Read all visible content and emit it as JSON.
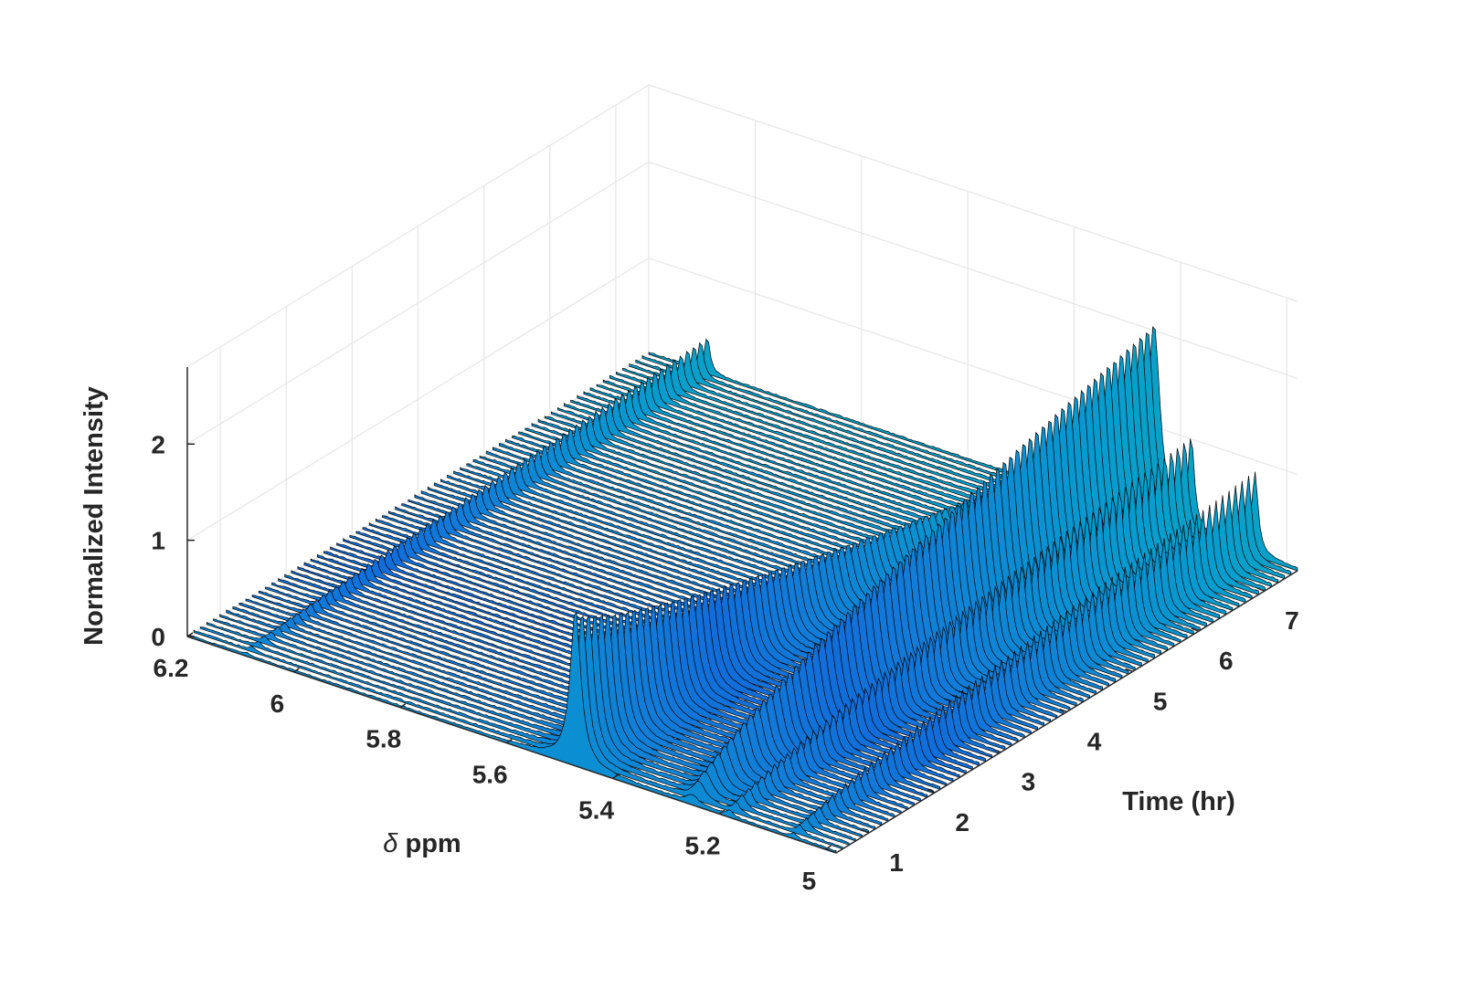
{
  "chart_data": {
    "type": "surface",
    "xlabel_symbol": "δ",
    "xlabel_rest": " ppm",
    "ylabel": "Time (hr)",
    "zlabel": "Normalized Intensity",
    "x_axis": {
      "reversed": true,
      "lim": [
        4.98,
        6.2
      ],
      "ticks": [
        6.2,
        6,
        5.8,
        5.6,
        5.4,
        5.2,
        5
      ],
      "tick_labels": [
        "6.2",
        "6",
        "5.8",
        "5.6",
        "5.4",
        "5.2",
        "5"
      ]
    },
    "y_axis": {
      "lim": [
        0.5,
        7.5
      ],
      "ticks": [
        1,
        2,
        3,
        4,
        5,
        6,
        7
      ],
      "tick_labels": [
        "1",
        "2",
        "3",
        "4",
        "5",
        "6",
        "7"
      ]
    },
    "z_axis": {
      "lim": [
        0,
        2.8
      ],
      "ticks": [
        0,
        1,
        2
      ],
      "tick_labels": [
        "0",
        "1",
        "2"
      ]
    },
    "grid": true,
    "colormap": "parula",
    "peaks": [
      {
        "center_ppm": 6.09,
        "width_ppm": 0.006,
        "height_start": 0.02,
        "height_end": 0.38
      },
      {
        "center_ppm": 5.47,
        "width_ppm": 0.012,
        "height_start": 1.62,
        "height_end": 0.08
      },
      {
        "center_ppm": 5.25,
        "width_ppm": 0.014,
        "height_start": 0.08,
        "height_end": 2.05
      },
      {
        "center_ppm": 5.18,
        "width_ppm": 0.007,
        "height_start": 0.05,
        "height_end": 0.95
      },
      {
        "center_ppm": 5.06,
        "width_ppm": 0.007,
        "height_start": 0.04,
        "height_end": 0.85
      }
    ],
    "time_range_hr": [
      0.5,
      7.5
    ],
    "n_time_slices": 72
  }
}
